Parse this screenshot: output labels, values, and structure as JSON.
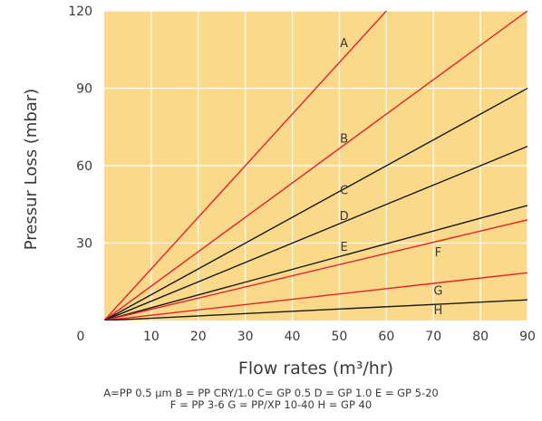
{
  "chart_data": {
    "type": "line",
    "xlabel": "Flow rates (m³/hr)",
    "ylabel": "Pressur Loss (mbar)",
    "xlim": [
      0,
      90
    ],
    "ylim": [
      0,
      120
    ],
    "x_ticks": [
      "0",
      "10",
      "20",
      "30",
      "40",
      "50",
      "60",
      "70",
      "80",
      "90"
    ],
    "y_ticks": [
      "30",
      "60",
      "90",
      "120"
    ],
    "grid": true,
    "background_color": "#fbd98a",
    "series": [
      {
        "name": "A",
        "color": "#e8202a",
        "x": [
          0,
          60
        ],
        "y": [
          0,
          120
        ],
        "label_at": [
          51,
          106
        ]
      },
      {
        "name": "B",
        "color": "#e8202a",
        "x": [
          0,
          90
        ],
        "y": [
          0,
          120
        ],
        "label_at": [
          51,
          69
        ]
      },
      {
        "name": "C",
        "color": "#1a1a1a",
        "x": [
          0,
          90
        ],
        "y": [
          0,
          90
        ],
        "label_at": [
          51,
          49
        ]
      },
      {
        "name": "D",
        "color": "#1a1a1a",
        "x": [
          0,
          90
        ],
        "y": [
          0,
          67.5
        ],
        "label_at": [
          51,
          39
        ]
      },
      {
        "name": "E",
        "color": "#1a1a1a",
        "x": [
          0,
          90
        ],
        "y": [
          0,
          44.6
        ],
        "label_at": [
          51,
          27
        ]
      },
      {
        "name": "F",
        "color": "#e8202a",
        "x": [
          0,
          90
        ],
        "y": [
          0,
          39
        ],
        "label_at": [
          71,
          25
        ]
      },
      {
        "name": "G",
        "color": "#e8202a",
        "x": [
          0,
          90
        ],
        "y": [
          0,
          18.5
        ],
        "label_at": [
          71,
          10
        ]
      },
      {
        "name": "H",
        "color": "#1a1a1a",
        "x": [
          0,
          90
        ],
        "y": [
          0,
          8
        ],
        "label_at": [
          71,
          2.5
        ]
      }
    ]
  },
  "legend_note": {
    "line1": "A=PP 0.5 µm  B = PP CRY/1.0 C= GP 0.5 D = GP 1.0  E = GP 5-20",
    "line2": "F = PP 3-6 G = PP/XP 10-40 H = GP 40"
  }
}
